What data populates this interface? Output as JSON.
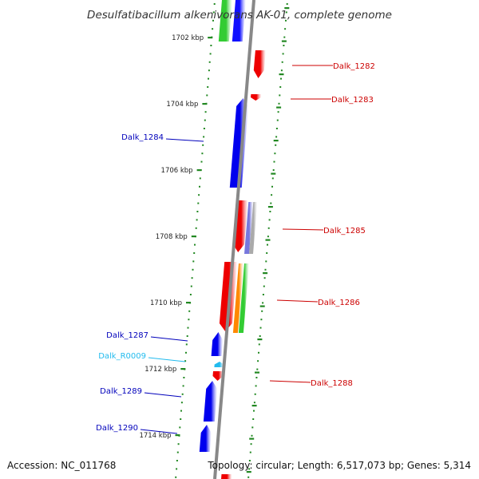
{
  "title": "Desulfatibacillum alkenivorans AK-01, complete genome",
  "footer": {
    "accession": "Accession: NC_011768",
    "topology": "Topology: circular; Length: 6,517,073 bp; Genes: 5,314"
  },
  "colors": {
    "forward_label": "#cc0000",
    "reverse_label": "#0000bb",
    "rna_label": "#22bbee",
    "backbone": "#888888",
    "guide_dots": "#228822"
  },
  "ticks": [
    {
      "label": "1702 kbp",
      "kbp": 1702
    },
    {
      "label": "1704 kbp",
      "kbp": 1704
    },
    {
      "label": "1706 kbp",
      "kbp": 1706
    },
    {
      "label": "1708 kbp",
      "kbp": 1708
    },
    {
      "label": "1710 kbp",
      "kbp": 1710
    },
    {
      "label": "1712 kbp",
      "kbp": 1712
    },
    {
      "label": "1714 kbp",
      "kbp": 1714
    }
  ],
  "genes": [
    {
      "label": "Dalk_1282",
      "strand": "forward",
      "kind": "gene"
    },
    {
      "label": "Dalk_1283",
      "strand": "forward",
      "kind": "gene"
    },
    {
      "label": "Dalk_1284",
      "strand": "reverse",
      "kind": "gene"
    },
    {
      "label": "Dalk_1285",
      "strand": "forward",
      "kind": "gene"
    },
    {
      "label": "Dalk_1286",
      "strand": "forward",
      "kind": "gene"
    },
    {
      "label": "Dalk_1287",
      "strand": "reverse",
      "kind": "gene"
    },
    {
      "label": "Dalk_R0009",
      "strand": "reverse",
      "kind": "rna"
    },
    {
      "label": "Dalk_1288",
      "strand": "forward",
      "kind": "gene"
    },
    {
      "label": "Dalk_1289",
      "strand": "reverse",
      "kind": "gene"
    },
    {
      "label": "Dalk_1290",
      "strand": "reverse",
      "kind": "gene"
    }
  ]
}
